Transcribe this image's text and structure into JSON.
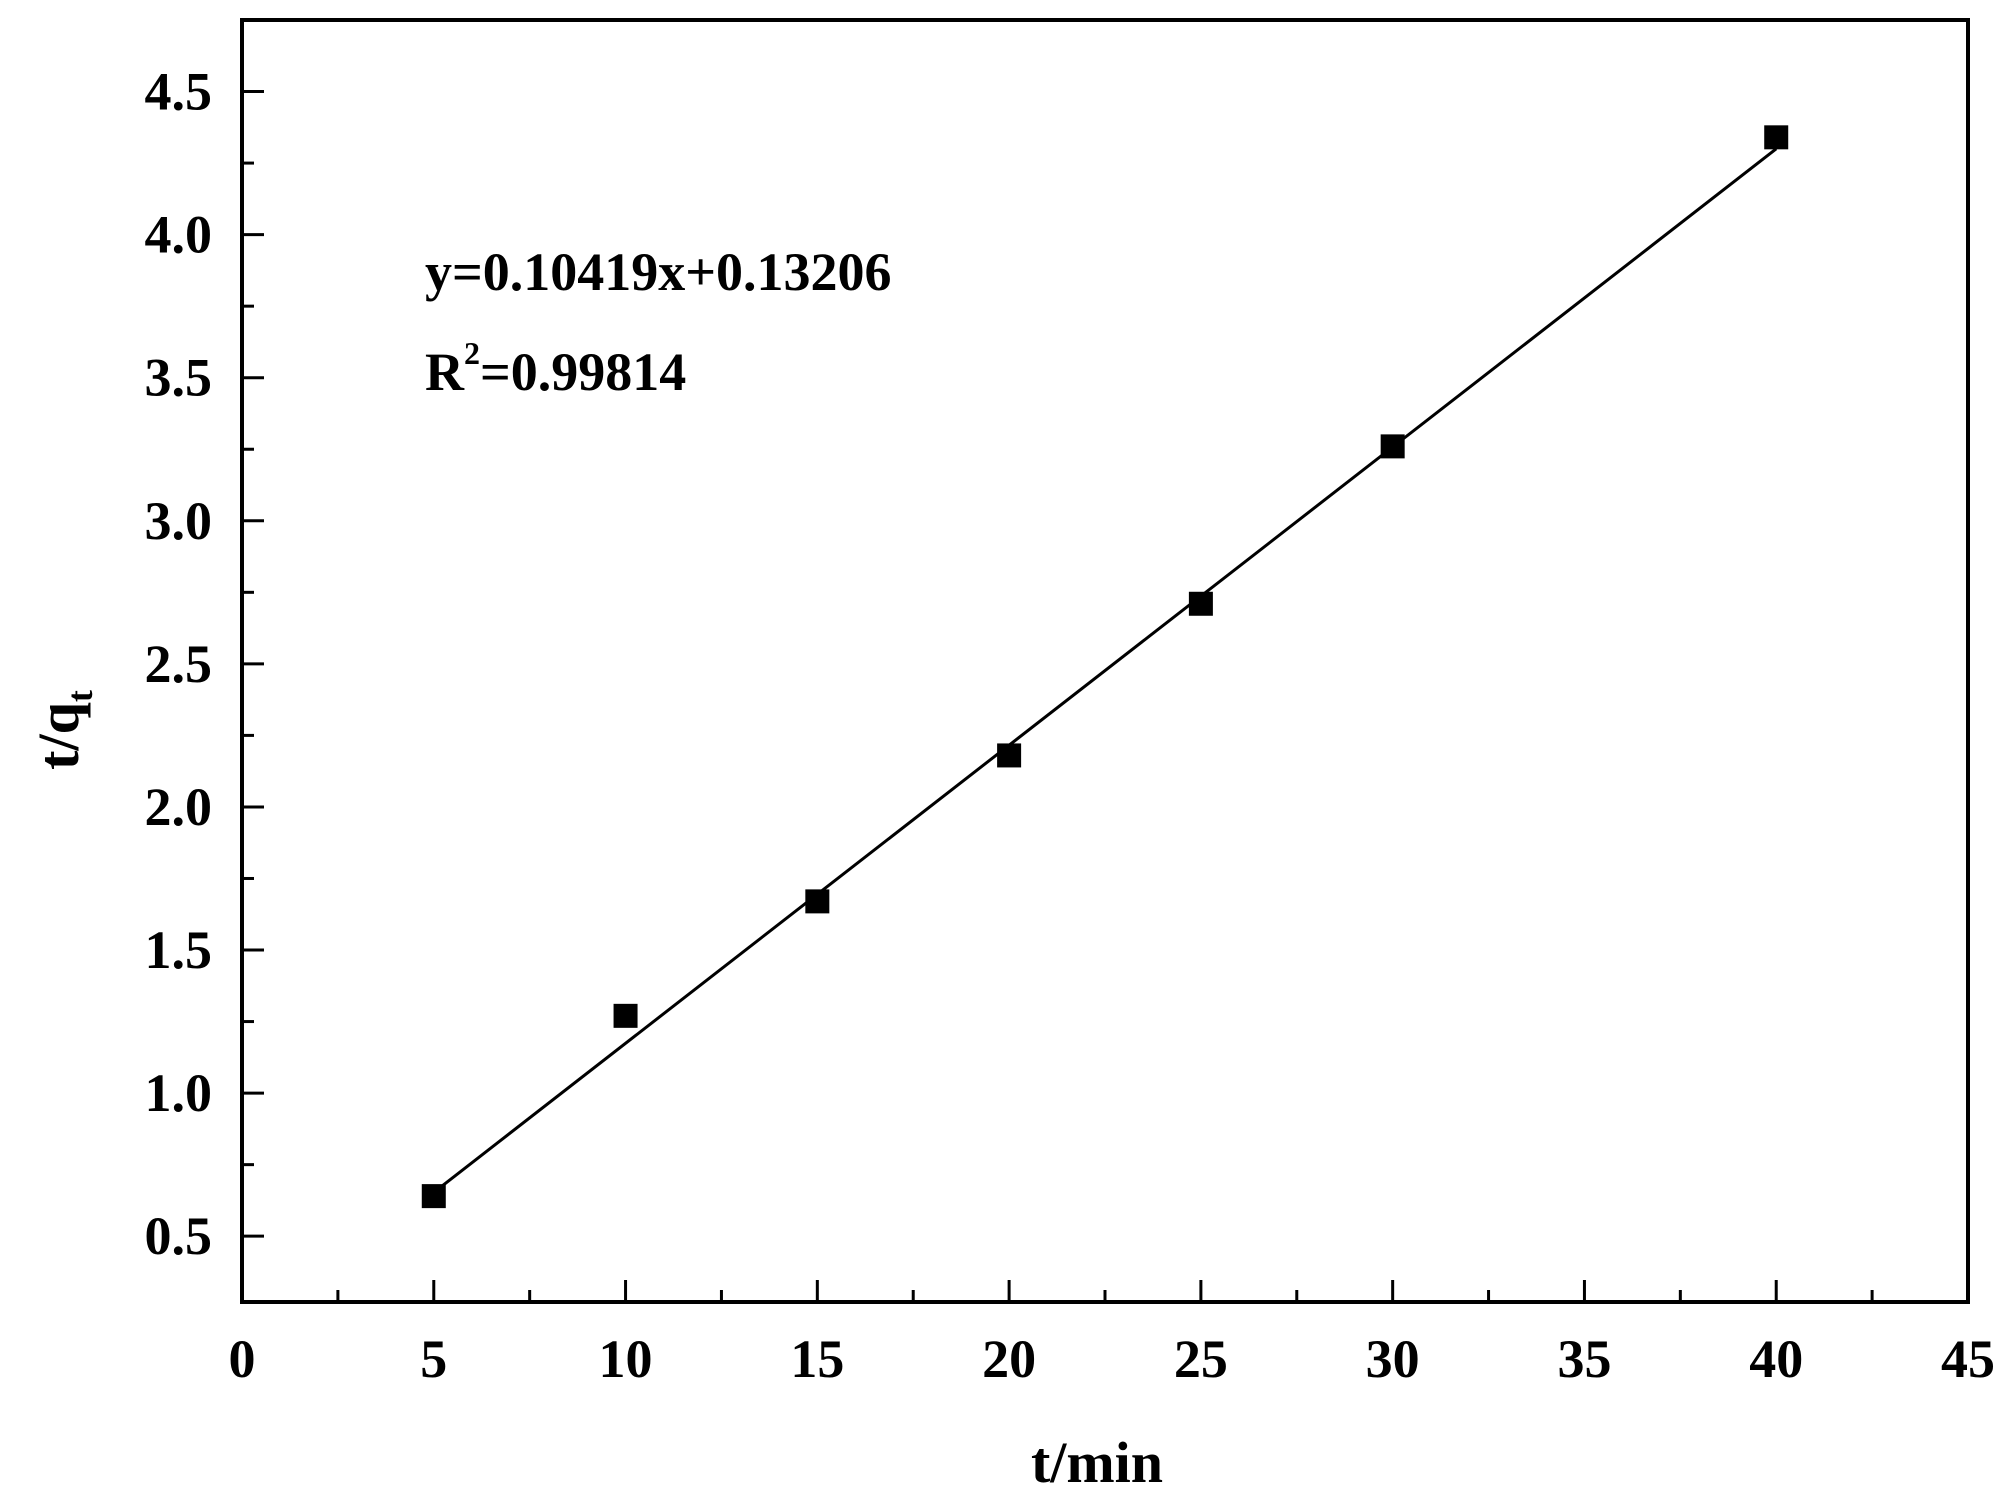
{
  "chart_data": {
    "type": "scatter",
    "xlabel": "t/min",
    "ylabel_main": "t/q",
    "ylabel_sub": "t",
    "xlim": [
      0,
      45
    ],
    "ylim": [
      0.27,
      4.75
    ],
    "xticks": [
      0,
      5,
      10,
      15,
      20,
      25,
      30,
      35,
      40,
      45
    ],
    "xtick_labels": [
      "0",
      "5",
      "10",
      "15",
      "20",
      "25",
      "30",
      "35",
      "40",
      "45"
    ],
    "yticks": [
      0.5,
      1.0,
      1.5,
      2.0,
      2.5,
      3.0,
      3.5,
      4.0,
      4.5
    ],
    "ytick_labels": [
      "0.5",
      "1.0",
      "1.5",
      "2.0",
      "2.5",
      "3.0",
      "3.5",
      "4.0",
      "4.5"
    ],
    "grid": false,
    "series": [
      {
        "marker": "square",
        "color": "#000000",
        "x": [
          5,
          10,
          15,
          20,
          25,
          30,
          40
        ],
        "y": [
          0.64,
          1.27,
          1.67,
          2.18,
          2.71,
          3.26,
          4.34
        ]
      }
    ],
    "fit_line": {
      "slope": 0.10419,
      "intercept": 0.13206,
      "x_range": [
        5,
        40
      ],
      "color": "#000000"
    },
    "annotations": {
      "equation": "y=0.10419x+0.13206",
      "r2_prefix": "R",
      "r2_sup": "2",
      "r2_value": "=0.99814"
    }
  }
}
